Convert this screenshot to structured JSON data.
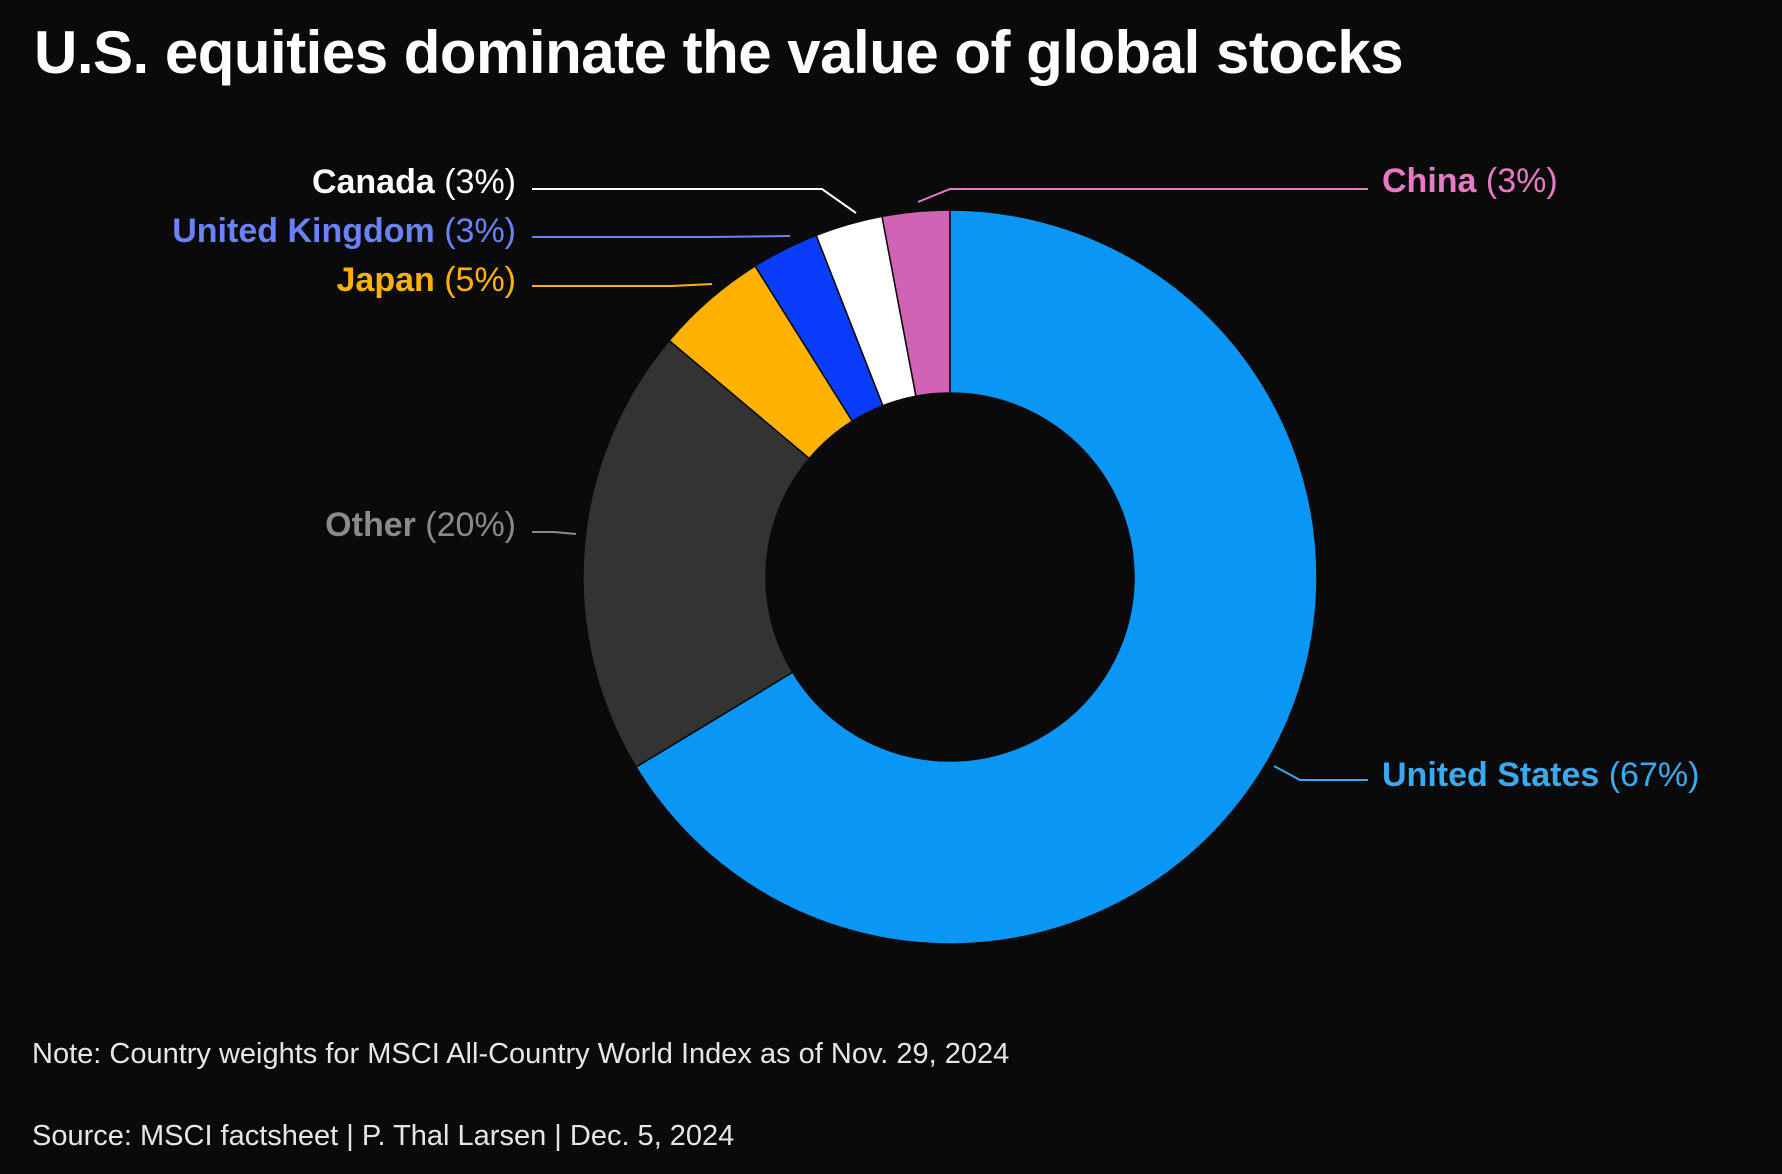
{
  "title": "U.S. equities dominate the value of global stocks",
  "note": "Note: Country weights for MSCI All-Country World Index as of Nov. 29, 2024",
  "source": "Source: MSCI factsheet | P. Thal Larsen | Dec. 5, 2024",
  "colors": {
    "background": "#0a0a0a",
    "title": "#ffffff",
    "footnote": "#e6e6e6"
  },
  "chart_data": {
    "type": "pie",
    "variant": "donut",
    "title": "U.S. equities dominate the value of global stocks",
    "slices": [
      {
        "key": "china",
        "label": "China",
        "pct_label": "(3%)",
        "value": 3,
        "color": "#d063b4",
        "label_color": "#e879c4",
        "label_side": "right"
      },
      {
        "key": "us",
        "label": "United States",
        "pct_label": "(67%)",
        "value": 67,
        "color": "#0a96f4",
        "label_color": "#3aaaf0",
        "label_side": "right"
      },
      {
        "key": "other",
        "label": "Other",
        "pct_label": "(20%)",
        "value": 20,
        "color": "#333333",
        "label_color": "#8a8a8a",
        "label_side": "left"
      },
      {
        "key": "japan",
        "label": "Japan",
        "pct_label": "(5%)",
        "value": 5,
        "color": "#ffb200",
        "label_color": "#ffb200",
        "label_side": "left"
      },
      {
        "key": "uk",
        "label": "United Kingdom",
        "pct_label": "(3%)",
        "value": 3,
        "color": "#0a3dfa",
        "label_color": "#6a82f5",
        "label_side": "left"
      },
      {
        "key": "canada",
        "label": "Canada",
        "pct_label": "(3%)",
        "value": 3,
        "color": "#ffffff",
        "label_color": "#ffffff",
        "label_side": "left"
      }
    ]
  }
}
